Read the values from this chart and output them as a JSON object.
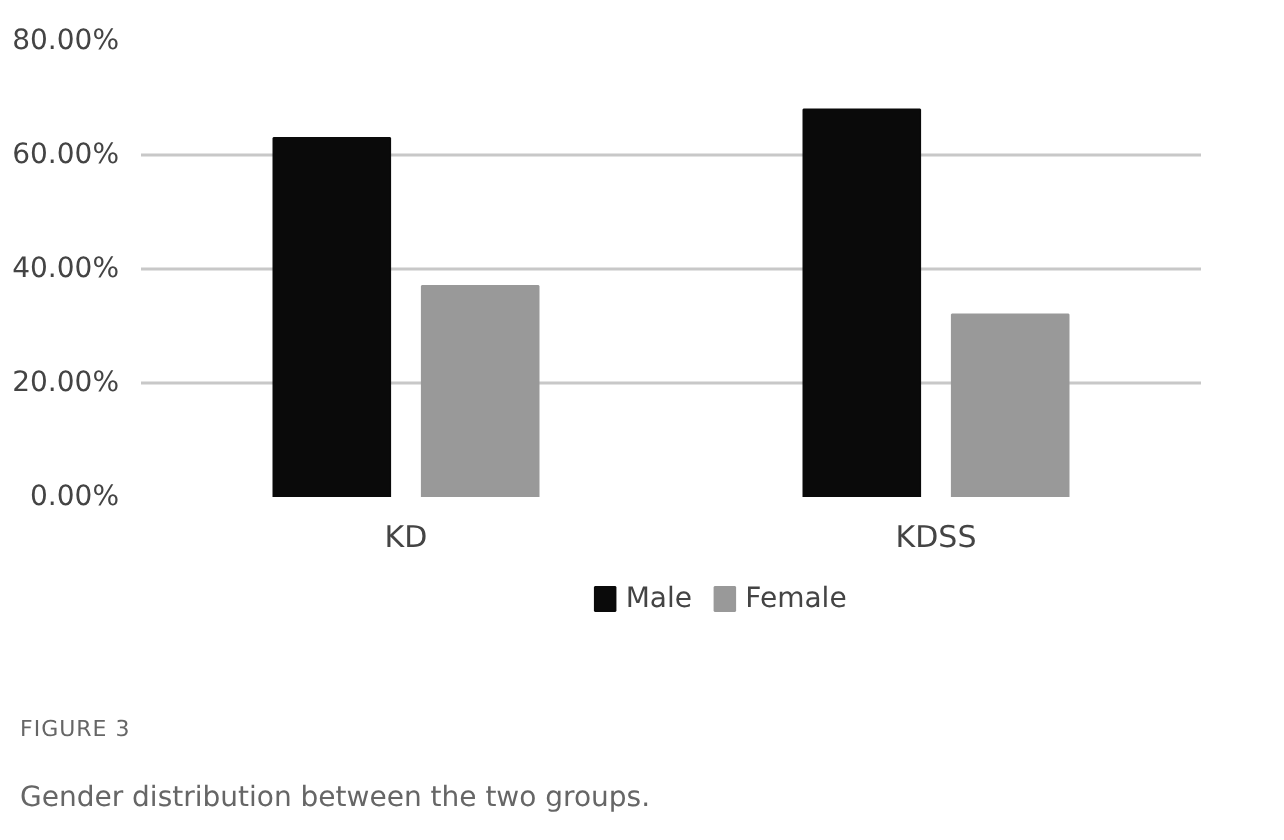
{
  "chart_data": {
    "type": "bar",
    "categories": [
      "KD",
      "KDSS"
    ],
    "series": [
      {
        "name": "Male",
        "color": "#0a0a0a",
        "values": [
          63,
          68
        ]
      },
      {
        "name": "Female",
        "color": "#999999",
        "values": [
          37,
          32
        ]
      }
    ],
    "ylim": [
      0,
      80
    ],
    "yticks": [
      {
        "value": 0,
        "label": "0.00%"
      },
      {
        "value": 20,
        "label": "20.00%"
      },
      {
        "value": 40,
        "label": "40.00%"
      },
      {
        "value": 60,
        "label": "60.00%"
      },
      {
        "value": 80,
        "label": "80.00%"
      }
    ],
    "grid": "y",
    "legend": "bottom",
    "annotations": [
      "FIGURE 3",
      "Gender distribution between the two groups."
    ]
  }
}
